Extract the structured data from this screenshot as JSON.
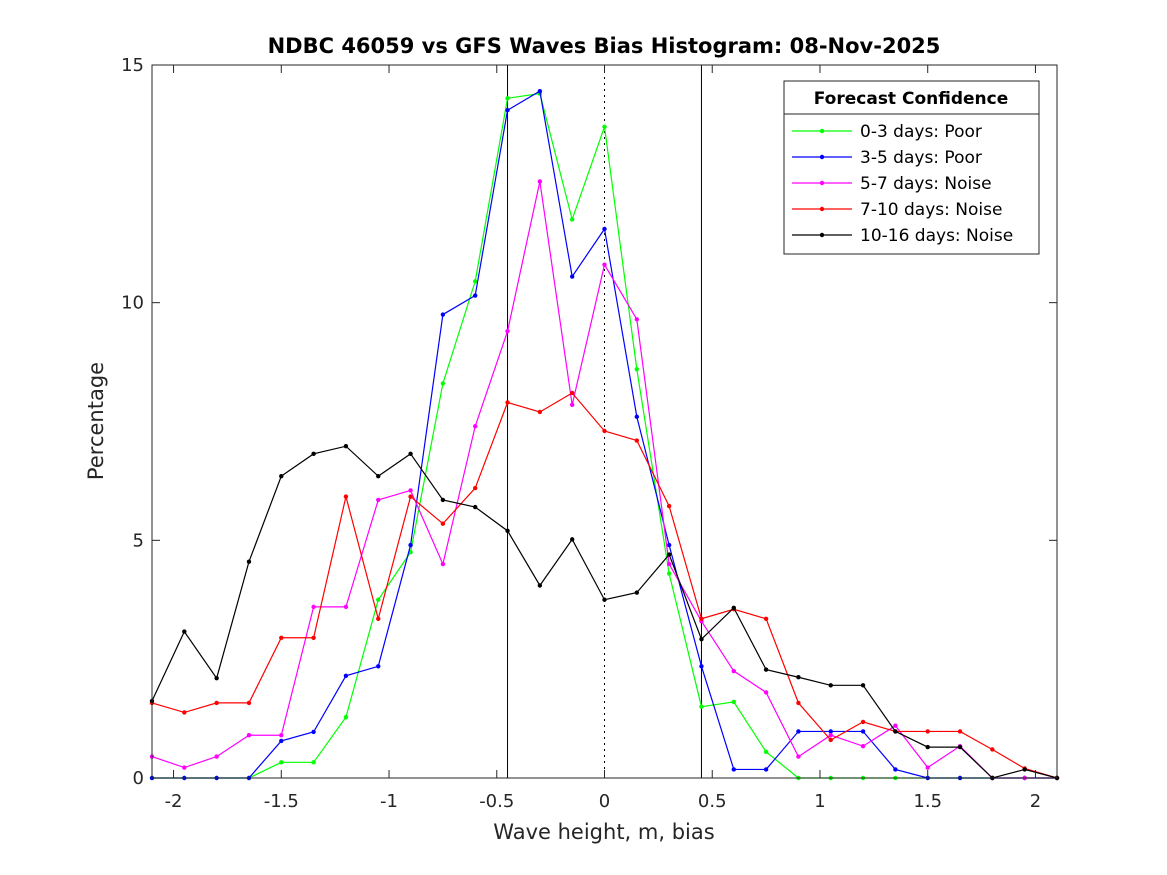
{
  "chart_data": {
    "type": "line",
    "title": "NDBC 46059 vs GFS Waves Bias Histogram: 08-Nov-2025",
    "xlabel": "Wave height, m, bias",
    "ylabel": "Percentage",
    "xlim": [
      -2.1,
      2.1
    ],
    "ylim": [
      0,
      15
    ],
    "xticks": [
      -2,
      -1.5,
      -1,
      -0.5,
      0,
      0.5,
      1,
      1.5,
      2
    ],
    "xtick_labels": [
      "-2",
      "-1.5",
      "-1",
      "-0.5",
      "0",
      "0.5",
      "1",
      "1.5",
      "2"
    ],
    "yticks": [
      0,
      5,
      10,
      15
    ],
    "ytick_labels": [
      "0",
      "5",
      "10",
      "15"
    ],
    "vertical_lines": [
      {
        "x": -0.45,
        "style": "solid"
      },
      {
        "x": 0,
        "style": "dotted"
      },
      {
        "x": 0.45,
        "style": "solid"
      }
    ],
    "legend": {
      "title": "Forecast Confidence",
      "position": "top-right"
    },
    "x": [
      -2.1,
      -1.95,
      -1.8,
      -1.65,
      -1.5,
      -1.35,
      -1.2,
      -1.05,
      -0.9,
      -0.75,
      -0.6,
      -0.45,
      -0.3,
      -0.15,
      0,
      0.15,
      0.3,
      0.45,
      0.6,
      0.75,
      0.9,
      1.05,
      1.2,
      1.35,
      1.5,
      1.65,
      1.8,
      1.95,
      2.1
    ],
    "series": [
      {
        "name": "0-3 days: Poor",
        "color": "#00ff00",
        "values": [
          0,
          0,
          0,
          0,
          0.33,
          0.33,
          1.28,
          3.75,
          4.75,
          8.3,
          10.45,
          14.3,
          14.4,
          11.75,
          13.7,
          8.6,
          4.3,
          1.5,
          1.6,
          0.55,
          0,
          0,
          0,
          0,
          0,
          0,
          0,
          0,
          0
        ]
      },
      {
        "name": "3-5 days: Poor",
        "color": "#0000ff",
        "values": [
          0,
          0,
          0,
          0,
          0.78,
          0.97,
          2.15,
          2.35,
          4.9,
          9.75,
          10.15,
          14.05,
          14.45,
          10.55,
          11.55,
          7.6,
          4.9,
          2.35,
          0.18,
          0.18,
          0.98,
          0.98,
          0.98,
          0.18,
          0,
          0,
          0,
          0,
          0
        ]
      },
      {
        "name": "5-7 days: Noise",
        "color": "#ff00ff",
        "values": [
          0.45,
          0.22,
          0.45,
          0.9,
          0.9,
          3.6,
          3.6,
          5.85,
          6.05,
          4.5,
          7.4,
          9.4,
          12.55,
          7.85,
          10.8,
          9.65,
          4.5,
          3.3,
          2.25,
          1.8,
          0.45,
          0.9,
          0.67,
          1.1,
          0.22,
          0.67,
          0,
          0,
          0
        ]
      },
      {
        "name": "7-10 days: Noise",
        "color": "#ff0000",
        "values": [
          1.58,
          1.38,
          1.58,
          1.58,
          2.95,
          2.95,
          5.92,
          3.35,
          5.92,
          5.35,
          6.1,
          7.9,
          7.7,
          8.1,
          7.3,
          7.1,
          5.72,
          3.35,
          3.55,
          3.35,
          1.58,
          0.8,
          1.18,
          0.98,
          0.98,
          0.98,
          0.6,
          0.2,
          0
        ]
      },
      {
        "name": "10-16 days: Noise",
        "color": "#000000",
        "values": [
          1.62,
          3.08,
          2.1,
          4.55,
          6.35,
          6.82,
          6.98,
          6.35,
          6.82,
          5.85,
          5.7,
          5.2,
          4.05,
          5.02,
          3.75,
          3.9,
          4.7,
          2.92,
          3.58,
          2.28,
          2.12,
          1.95,
          1.95,
          0.98,
          0.65,
          0.65,
          0,
          0.18,
          0
        ]
      }
    ]
  }
}
